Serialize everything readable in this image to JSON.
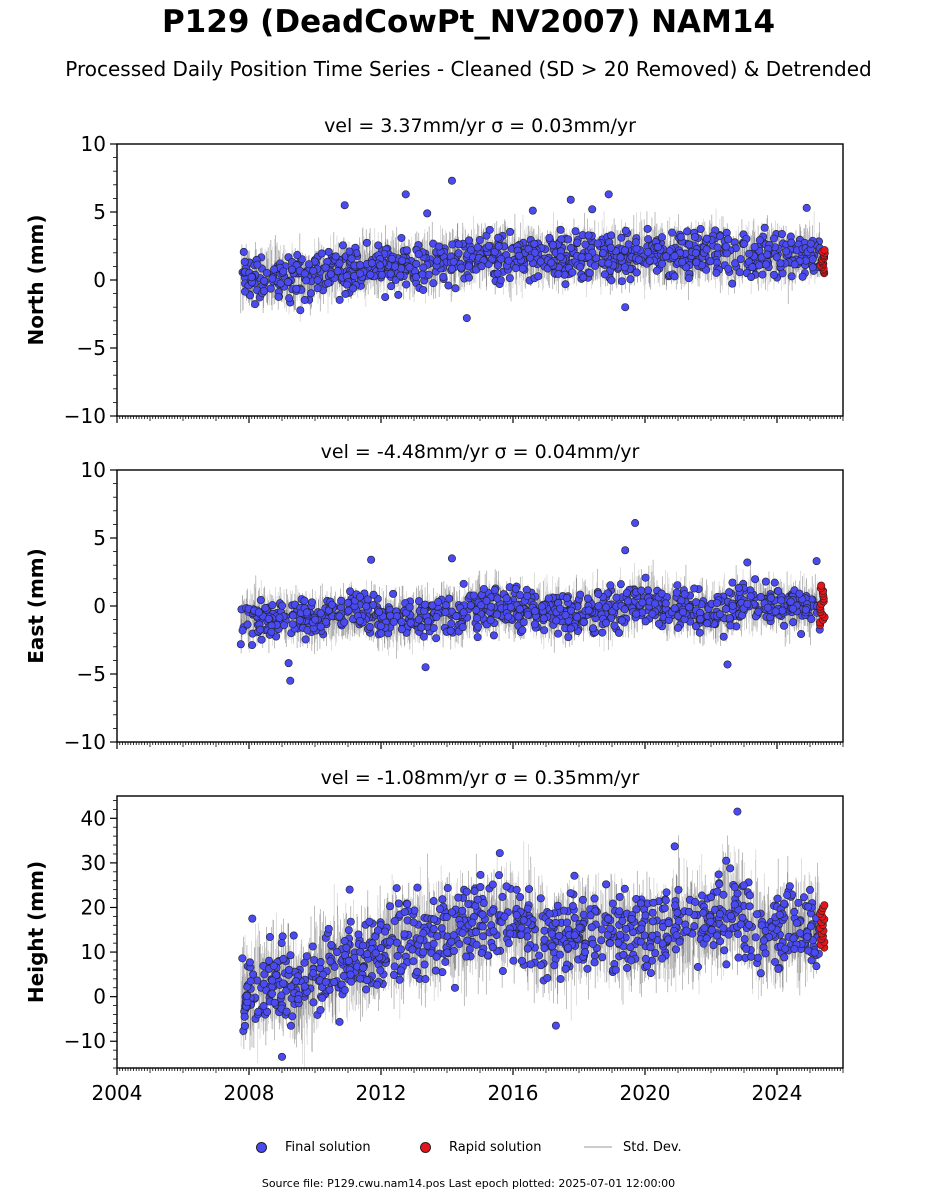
{
  "title": "P129 (DeadCowPt_NV2007) NAM14",
  "subtitle": "Processed Daily Position Time Series - Cleaned (SD > 20 Removed) & Detrended",
  "legend": {
    "final": "Final solution",
    "rapid": "Rapid solution",
    "std": "Std. Dev."
  },
  "source_note": "Source file: P129.cwu.nam14.pos  Last epoch plotted: 2025-07-01 12:00:00",
  "colors": {
    "final": "#4a4af2",
    "rapid": "#e8141b",
    "std": "#cccccc",
    "std_dense": "#555555"
  },
  "chart_data": [
    {
      "type": "scatter",
      "title": "vel = 3.37mm/yr   σ = 0.03mm/yr",
      "ylabel": "North (mm)",
      "xlim": [
        2004,
        2026
      ],
      "ylim": [
        -10,
        10
      ],
      "yticks": [
        -10,
        -5,
        0,
        5,
        10
      ],
      "ytick_labels": [
        "−10",
        "−5",
        "0",
        "5",
        "10"
      ],
      "x_range": [
        2007.75,
        2025.3
      ],
      "rapid_range": [
        2025.3,
        2025.45
      ],
      "series": [
        {
          "name": "Final solution",
          "trend_x": [
            2007.75,
            2009,
            2010,
            2011,
            2012,
            2013,
            2014,
            2015,
            2016,
            2017,
            2018,
            2019,
            2020,
            2021,
            2022,
            2023,
            2024,
            2025.3
          ],
          "trend_y": [
            0.2,
            0.0,
            0.2,
            0.9,
            1.1,
            1.1,
            1.4,
            1.8,
            1.7,
            1.6,
            1.9,
            1.8,
            2.0,
            1.9,
            2.0,
            1.7,
            1.8,
            1.8
          ],
          "spread": 1.1,
          "point_sd": 0.9,
          "outliers": [
            [
              2010.9,
              5.5
            ],
            [
              2012.75,
              6.3
            ],
            [
              2014.15,
              7.3
            ],
            [
              2014.6,
              -2.8
            ],
            [
              2017.75,
              5.9
            ],
            [
              2018.4,
              5.2
            ],
            [
              2018.9,
              6.3
            ],
            [
              2019.4,
              -2.0
            ],
            [
              2024.9,
              5.3
            ],
            [
              2013.4,
              4.9
            ],
            [
              2016.6,
              5.1
            ]
          ]
        },
        {
          "name": "Rapid solution",
          "y_range": [
            0.5,
            2.2
          ]
        }
      ]
    },
    {
      "type": "scatter",
      "title": "vel = -4.48mm/yr   σ = 0.04mm/yr",
      "ylabel": "East (mm)",
      "xlim": [
        2004,
        2026
      ],
      "ylim": [
        -10,
        10
      ],
      "yticks": [
        -10,
        -5,
        0,
        5,
        10
      ],
      "ytick_labels": [
        "−10",
        "−5",
        "0",
        "5",
        "10"
      ],
      "x_range": [
        2007.75,
        2025.3
      ],
      "rapid_range": [
        2025.3,
        2025.45
      ],
      "series": [
        {
          "name": "Final solution",
          "trend_x": [
            2007.75,
            2009,
            2010,
            2011,
            2012,
            2013,
            2014,
            2015,
            2016,
            2017,
            2018,
            2019,
            2020,
            2021,
            2022,
            2023,
            2024,
            2025.3
          ],
          "trend_y": [
            -1.0,
            -0.8,
            -1.0,
            -0.5,
            -0.8,
            -0.9,
            -0.6,
            -0.2,
            0.0,
            -0.4,
            -0.5,
            -0.2,
            0.3,
            -0.2,
            -0.6,
            0.4,
            0.0,
            0.0
          ],
          "spread": 1.0,
          "point_sd": 0.8,
          "outliers": [
            [
              2009.25,
              -5.5
            ],
            [
              2009.2,
              -4.2
            ],
            [
              2011.7,
              3.4
            ],
            [
              2014.15,
              3.5
            ],
            [
              2019.7,
              6.1
            ],
            [
              2019.4,
              4.1
            ],
            [
              2022.5,
              -4.3
            ],
            [
              2023.1,
              3.2
            ],
            [
              2025.2,
              3.3
            ],
            [
              2013.35,
              -4.5
            ]
          ]
        },
        {
          "name": "Rapid solution",
          "y_range": [
            -1.4,
            1.5
          ]
        }
      ]
    },
    {
      "type": "scatter",
      "title": "vel = -1.08mm/yr   σ = 0.35mm/yr",
      "ylabel": "Height (mm)",
      "xlim": [
        2004,
        2026
      ],
      "ylim": [
        -16,
        45
      ],
      "yticks": [
        -10,
        0,
        10,
        20,
        30,
        40
      ],
      "ytick_labels": [
        "−10",
        "0",
        "10",
        "20",
        "30",
        "40"
      ],
      "xticks": [
        2004,
        2008,
        2012,
        2016,
        2020,
        2024
      ],
      "xtick_labels": [
        "2004",
        "2008",
        "2012",
        "2016",
        "2020",
        "2024"
      ],
      "x_range": [
        2007.75,
        2025.3
      ],
      "rapid_range": [
        2025.3,
        2025.45
      ],
      "series": [
        {
          "name": "Final solution",
          "trend_x": [
            2007.75,
            2008.5,
            2009,
            2009.5,
            2010,
            2011,
            2012,
            2013,
            2014,
            2015,
            2016,
            2017,
            2018,
            2019,
            2020,
            2021,
            2022,
            2022.8,
            2023.5,
            2024,
            2025.3
          ],
          "trend_y": [
            0,
            3,
            4,
            1,
            5,
            8,
            10,
            13,
            15,
            16,
            18,
            13,
            14,
            14,
            14,
            16,
            17,
            20,
            13,
            14,
            15
          ],
          "spread": 6.0,
          "point_sd": 4.5,
          "outliers": [
            [
              2022.8,
              41.5
            ],
            [
              2008.1,
              17.5
            ],
            [
              2017.3,
              -6.5
            ],
            [
              2009.0,
              -13.5
            ],
            [
              2020.9,
              33.7
            ],
            [
              2015.6,
              32.2
            ],
            [
              2011.05,
              24.0
            ]
          ]
        },
        {
          "name": "Rapid solution",
          "y_range": [
            11.0,
            20.5
          ]
        }
      ]
    }
  ]
}
